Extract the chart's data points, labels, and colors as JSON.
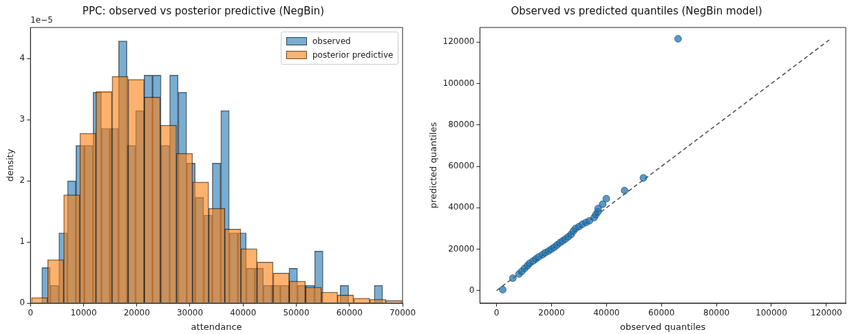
{
  "chart_data": [
    {
      "type": "histogram",
      "title": "PPC: observed vs posterior predictive (NegBin)",
      "xlabel": "attendance",
      "ylabel": "density",
      "annotations": [
        "1e−5"
      ],
      "xlim": [
        0,
        70000
      ],
      "xticks": [
        0,
        10000,
        20000,
        30000,
        40000,
        50000,
        60000,
        70000
      ],
      "ylim": [
        0,
        4.51
      ],
      "yticks": [
        0,
        1,
        2,
        3,
        4
      ],
      "grid": false,
      "legend": "top right",
      "bins": [
        2140,
        3740,
        5350,
        6950,
        8550,
        10160,
        11760,
        13360,
        14960,
        16570,
        18170,
        19770,
        21380,
        22980,
        24580,
        26190,
        27790,
        29390,
        30990,
        32600,
        34200,
        35800,
        37410,
        39010,
        40610,
        42220,
        43820,
        45420,
        47020,
        48630,
        50230,
        51830,
        53440,
        55040,
        56640,
        58250,
        59850,
        61450,
        63050,
        64660,
        66260
      ],
      "series": [
        {
          "name": "observed",
          "color": "#1f77b4",
          "values": [
            0.58,
            0.29,
            1.15,
            2.0,
            2.58,
            2.58,
            3.45,
            2.86,
            2.86,
            4.29,
            2.58,
            3.15,
            3.73,
            3.73,
            2.58,
            3.73,
            3.45,
            2.29,
            1.73,
            1.44,
            2.29,
            3.15,
            1.15,
            1.15,
            0.57,
            0.57,
            0.29,
            0.29,
            0.29,
            0.57,
            0.29,
            0.29,
            0.85,
            0,
            0,
            0.29,
            0,
            0,
            0,
            0.29
          ]
        },
        {
          "name": "posterior predictive",
          "color": "#ff7f0e",
          "bins": [
            200,
            3230,
            6260,
            9290,
            12320,
            15350,
            18380,
            21410,
            24440,
            27470,
            30500,
            33530,
            36560,
            39590,
            42620,
            45650,
            48680,
            51710,
            54740,
            57770,
            60800,
            63830,
            66860,
            69890
          ],
          "values": [
            0.09,
            0.71,
            1.77,
            2.78,
            3.46,
            3.71,
            3.66,
            3.37,
            2.91,
            2.45,
            1.98,
            1.55,
            1.21,
            0.89,
            0.67,
            0.49,
            0.36,
            0.26,
            0.18,
            0.13,
            0.08,
            0.06,
            0.04
          ]
        }
      ]
    },
    {
      "type": "scatter",
      "title": "Observed vs predicted quantiles (NegBin model)",
      "xlabel": "observed quantiles",
      "ylabel": "predicted quantiles",
      "xlim": [
        -6050,
        127050
      ],
      "xticks": [
        0,
        20000,
        40000,
        60000,
        80000,
        100000,
        120000
      ],
      "ylim": [
        -6050,
        127050
      ],
      "yticks": [
        0,
        20000,
        40000,
        60000,
        80000,
        100000,
        120000
      ],
      "grid": false,
      "marker": "circle",
      "series": [
        {
          "type": "scatter",
          "color": "#1f77b4",
          "x": [
            2250,
            5940,
            8190,
            9210,
            10240,
            11260,
            12080,
            13310,
            14330,
            15360,
            16690,
            17710,
            18940,
            19970,
            21000,
            22010,
            23040,
            24060,
            25080,
            26110,
            27130,
            27950,
            28770,
            29990,
            31230,
            32560,
            33790,
            35530,
            36140,
            36860,
            36960,
            38600,
            39930,
            46590,
            53450,
            66040
          ],
          "values": [
            400,
            6000,
            8000,
            9300,
            10700,
            12000,
            13200,
            14300,
            15300,
            16300,
            17300,
            18300,
            19100,
            20000,
            20900,
            22000,
            23100,
            24000,
            24900,
            26000,
            27100,
            28700,
            30000,
            30900,
            32000,
            32900,
            33700,
            35300,
            36700,
            38000,
            39600,
            41700,
            44400,
            48300,
            54400,
            121600
          ]
        },
        {
          "type": "line",
          "color": "#555555",
          "line_style": "dashed",
          "marker": "none",
          "x": [
            0,
            121000
          ],
          "values": [
            0,
            121000
          ]
        }
      ]
    }
  ]
}
